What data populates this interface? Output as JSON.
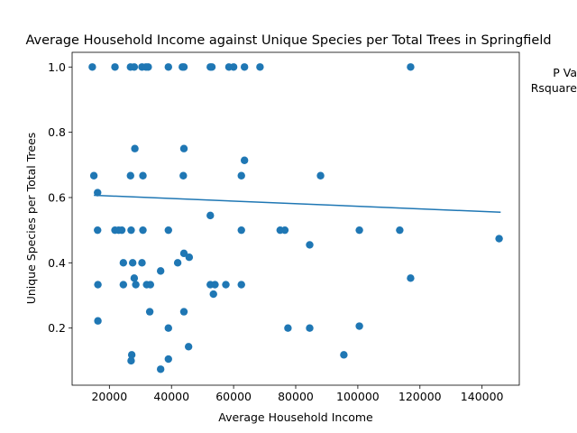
{
  "chart_data": {
    "type": "scatter",
    "title": "Average Household Income against Unique Species per Total Trees in Springfield",
    "xlabel": "Average Household Income",
    "ylabel": "Unique Species per Total Trees",
    "xlim": [
      8000,
      152000
    ],
    "ylim": [
      0.025,
      1.045
    ],
    "xticks": [
      20000,
      40000,
      60000,
      80000,
      100000,
      120000,
      140000
    ],
    "yticks": [
      0.2,
      0.4,
      0.6,
      0.8,
      1.0
    ],
    "ytick_labels": [
      "0.2",
      "0.4",
      "0.6",
      "0.8",
      "1.0"
    ],
    "grid": false,
    "marker_color": "#1f77b4",
    "trend_color": "#1f77b4",
    "annotations": [
      "P Va",
      "Rsquare"
    ],
    "trendline": {
      "x": [
        15000,
        146000
      ],
      "y": [
        0.607,
        0.555
      ]
    },
    "points": [
      [
        14500,
        1.0
      ],
      [
        21800,
        1.0
      ],
      [
        26800,
        1.0
      ],
      [
        28000,
        1.0
      ],
      [
        30500,
        1.0
      ],
      [
        31800,
        1.0
      ],
      [
        32500,
        1.0
      ],
      [
        39000,
        1.0
      ],
      [
        43500,
        1.0
      ],
      [
        44000,
        1.0
      ],
      [
        52500,
        1.0
      ],
      [
        53000,
        1.0
      ],
      [
        58500,
        1.0
      ],
      [
        60000,
        1.0
      ],
      [
        63500,
        1.0
      ],
      [
        68500,
        1.0
      ],
      [
        117000,
        1.0
      ],
      [
        28200,
        0.75
      ],
      [
        44000,
        0.75
      ],
      [
        63500,
        0.714
      ],
      [
        15000,
        0.667
      ],
      [
        26800,
        0.667
      ],
      [
        30800,
        0.667
      ],
      [
        43800,
        0.667
      ],
      [
        62500,
        0.667
      ],
      [
        88000,
        0.667
      ],
      [
        16200,
        0.615
      ],
      [
        52500,
        0.545
      ],
      [
        16200,
        0.5
      ],
      [
        21800,
        0.5
      ],
      [
        23000,
        0.5
      ],
      [
        24000,
        0.5
      ],
      [
        27000,
        0.5
      ],
      [
        30800,
        0.5
      ],
      [
        39000,
        0.5
      ],
      [
        62500,
        0.5
      ],
      [
        75000,
        0.5
      ],
      [
        76500,
        0.5
      ],
      [
        100500,
        0.5
      ],
      [
        113500,
        0.5
      ],
      [
        145500,
        0.474
      ],
      [
        84500,
        0.455
      ],
      [
        44000,
        0.429
      ],
      [
        45700,
        0.417
      ],
      [
        24500,
        0.4
      ],
      [
        27500,
        0.4
      ],
      [
        30500,
        0.4
      ],
      [
        42000,
        0.4
      ],
      [
        36500,
        0.375
      ],
      [
        28000,
        0.353
      ],
      [
        117000,
        0.353
      ],
      [
        16300,
        0.333
      ],
      [
        24500,
        0.333
      ],
      [
        28500,
        0.333
      ],
      [
        32000,
        0.333
      ],
      [
        33200,
        0.333
      ],
      [
        52500,
        0.333
      ],
      [
        54000,
        0.333
      ],
      [
        57500,
        0.333
      ],
      [
        62500,
        0.333
      ],
      [
        53500,
        0.304
      ],
      [
        33000,
        0.25
      ],
      [
        44000,
        0.25
      ],
      [
        16300,
        0.222
      ],
      [
        39000,
        0.2
      ],
      [
        77500,
        0.2
      ],
      [
        84500,
        0.2
      ],
      [
        100500,
        0.206
      ],
      [
        45500,
        0.143
      ],
      [
        27200,
        0.118
      ],
      [
        95500,
        0.118
      ],
      [
        27000,
        0.1
      ],
      [
        39000,
        0.105
      ],
      [
        36500,
        0.074
      ]
    ]
  }
}
